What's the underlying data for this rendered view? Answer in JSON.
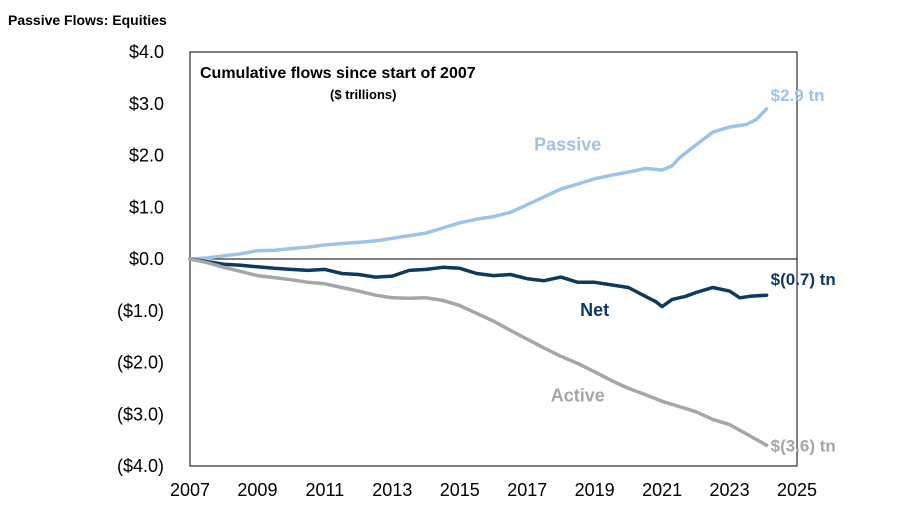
{
  "page_title": "Passive Flows: Equities",
  "chart_data": {
    "type": "line",
    "title": "Cumulative flows since start of 2007",
    "subtitle": "($ trillions)",
    "xlabel": "",
    "ylabel": "",
    "xlim": [
      2007,
      2025
    ],
    "ylim": [
      -4,
      4
    ],
    "x_ticks": [
      2007,
      2009,
      2011,
      2013,
      2015,
      2017,
      2019,
      2021,
      2023,
      2025
    ],
    "x_tick_labels": [
      "2007",
      "2009",
      "2011",
      "2013",
      "2015",
      "2017",
      "2019",
      "2021",
      "2023",
      "2025"
    ],
    "y_ticks": [
      4,
      3,
      2,
      1,
      0,
      -1,
      -2,
      -3,
      -4
    ],
    "y_tick_labels": [
      "$4.0",
      "$3.0",
      "$2.0",
      "$1.0",
      "$0.0",
      "($1.0)",
      "($2.0)",
      "($3.0)",
      "($4.0)"
    ],
    "grid": false,
    "zero_line": true,
    "series": [
      {
        "name": "Passive",
        "color": "#9dc3e6",
        "end_label": "$2.9 tn",
        "x": [
          2007.0,
          2007.5,
          2008.0,
          2008.5,
          2009.0,
          2009.5,
          2010.0,
          2010.5,
          2011.0,
          2011.5,
          2012.0,
          2012.5,
          2013.0,
          2013.5,
          2014.0,
          2014.5,
          2015.0,
          2015.5,
          2016.0,
          2016.5,
          2017.0,
          2017.5,
          2018.0,
          2018.5,
          2019.0,
          2019.5,
          2020.0,
          2020.5,
          2021.0,
          2021.3,
          2021.5,
          2022.0,
          2022.5,
          2023.0,
          2023.5,
          2023.8,
          2024.1
        ],
        "y": [
          0.0,
          0.02,
          0.06,
          0.1,
          0.16,
          0.17,
          0.2,
          0.23,
          0.27,
          0.3,
          0.32,
          0.35,
          0.4,
          0.45,
          0.5,
          0.6,
          0.7,
          0.77,
          0.82,
          0.9,
          1.05,
          1.2,
          1.35,
          1.45,
          1.55,
          1.62,
          1.68,
          1.75,
          1.72,
          1.8,
          1.95,
          2.2,
          2.45,
          2.55,
          2.6,
          2.7,
          2.9
        ]
      },
      {
        "name": "Net",
        "color": "#0e3a5e",
        "end_label": "$(0.7) tn",
        "x": [
          2007.0,
          2007.5,
          2008.0,
          2008.5,
          2009.0,
          2009.5,
          2010.0,
          2010.5,
          2011.0,
          2011.5,
          2012.0,
          2012.5,
          2013.0,
          2013.5,
          2014.0,
          2014.5,
          2015.0,
          2015.5,
          2016.0,
          2016.5,
          2017.0,
          2017.5,
          2018.0,
          2018.5,
          2019.0,
          2019.5,
          2020.0,
          2020.5,
          2020.8,
          2021.0,
          2021.3,
          2021.7,
          2022.0,
          2022.5,
          2023.0,
          2023.3,
          2023.6,
          2024.1
        ],
        "y": [
          0.0,
          -0.05,
          -0.1,
          -0.12,
          -0.15,
          -0.18,
          -0.2,
          -0.22,
          -0.2,
          -0.28,
          -0.3,
          -0.35,
          -0.33,
          -0.22,
          -0.2,
          -0.16,
          -0.18,
          -0.28,
          -0.32,
          -0.3,
          -0.38,
          -0.42,
          -0.35,
          -0.45,
          -0.45,
          -0.5,
          -0.55,
          -0.72,
          -0.82,
          -0.92,
          -0.78,
          -0.72,
          -0.65,
          -0.55,
          -0.62,
          -0.75,
          -0.72,
          -0.7
        ]
      },
      {
        "name": "Active",
        "color": "#a6a6a6",
        "end_label": "$(3.6) tn",
        "x": [
          2007.0,
          2007.5,
          2008.0,
          2008.5,
          2009.0,
          2009.5,
          2010.0,
          2010.5,
          2011.0,
          2011.5,
          2012.0,
          2012.5,
          2013.0,
          2013.5,
          2014.0,
          2014.5,
          2015.0,
          2015.5,
          2016.0,
          2016.5,
          2017.0,
          2017.5,
          2018.0,
          2018.5,
          2019.0,
          2019.5,
          2020.0,
          2020.5,
          2021.0,
          2021.5,
          2022.0,
          2022.5,
          2023.0,
          2023.5,
          2024.1
        ],
        "y": [
          0.0,
          -0.07,
          -0.16,
          -0.24,
          -0.32,
          -0.36,
          -0.4,
          -0.45,
          -0.48,
          -0.55,
          -0.62,
          -0.7,
          -0.75,
          -0.76,
          -0.75,
          -0.8,
          -0.9,
          -1.05,
          -1.2,
          -1.38,
          -1.55,
          -1.72,
          -1.88,
          -2.02,
          -2.18,
          -2.35,
          -2.5,
          -2.62,
          -2.75,
          -2.85,
          -2.95,
          -3.1,
          -3.2,
          -3.38,
          -3.6
        ]
      }
    ]
  }
}
